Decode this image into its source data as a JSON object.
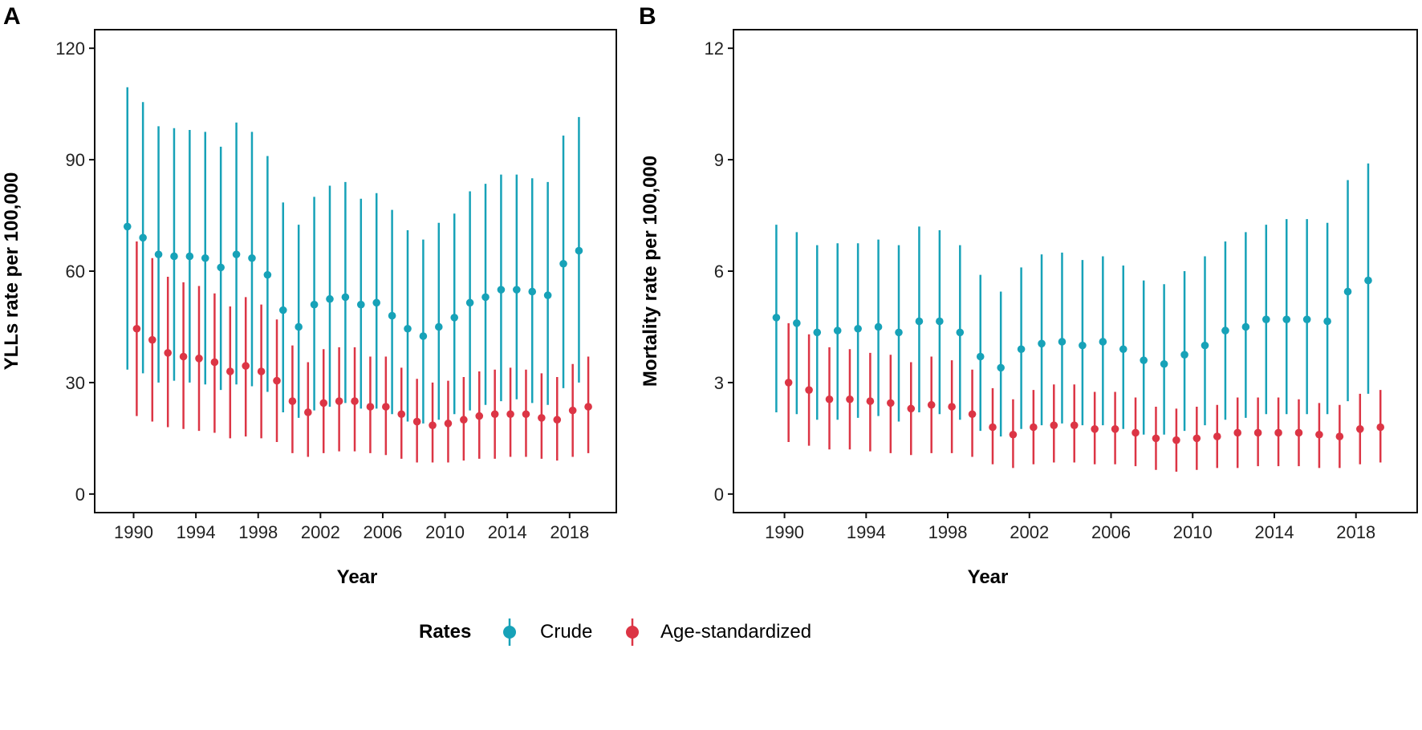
{
  "colors": {
    "crude": "#17a2b8",
    "age_standardized": "#dc3545"
  },
  "legend": {
    "title": "Rates",
    "items": [
      {
        "label": "Crude",
        "color": "#17a2b8"
      },
      {
        "label": "Age-standardized",
        "color": "#dc3545"
      }
    ]
  },
  "chart_data": [
    {
      "type": "scatter",
      "panel_label": "A",
      "xlabel": "Year",
      "ylabel": "YLLs rate per 100,000",
      "ylim": [
        -5,
        125
      ],
      "xlim": [
        1987.5,
        2021
      ],
      "y_ticks": [
        0,
        30,
        60,
        90,
        120
      ],
      "x_ticks": [
        1990,
        1994,
        1998,
        2002,
        2006,
        2010,
        2014,
        2018
      ],
      "years": [
        1990,
        1991,
        1992,
        1993,
        1994,
        1995,
        1996,
        1997,
        1998,
        1999,
        2000,
        2001,
        2002,
        2003,
        2004,
        2005,
        2006,
        2007,
        2008,
        2009,
        2010,
        2011,
        2012,
        2013,
        2014,
        2015,
        2016,
        2017,
        2018,
        2019
      ],
      "series": [
        {
          "name": "Crude",
          "values": [
            72,
            69,
            64.5,
            64,
            64,
            63.5,
            61,
            64.5,
            63.5,
            59,
            49.5,
            45,
            51,
            52.5,
            53,
            51,
            51.5,
            48,
            44.5,
            42.5,
            45,
            47.5,
            51.5,
            53,
            55,
            55,
            54.5,
            53.5,
            62,
            65.5
          ],
          "lower": [
            33.5,
            32.5,
            30,
            30.5,
            30,
            29.5,
            28,
            29.5,
            29,
            27.5,
            22,
            20.5,
            22.5,
            23.5,
            24.5,
            23,
            23,
            21.5,
            19.5,
            19,
            20,
            21.5,
            22.5,
            24,
            25,
            25.5,
            24.5,
            24,
            28.5,
            30
          ],
          "upper": [
            109.5,
            105.5,
            99,
            98.5,
            98,
            97.5,
            93.5,
            100,
            97.5,
            91,
            78.5,
            72.5,
            80,
            83,
            84,
            79.5,
            81,
            76.5,
            71,
            68.5,
            73,
            75.5,
            81.5,
            83.5,
            86,
            86,
            85,
            84,
            96.5,
            101.5
          ]
        },
        {
          "name": "Age-standardized",
          "values": [
            44.5,
            41.5,
            38,
            37,
            36.5,
            35.5,
            33,
            34.5,
            33,
            30.5,
            25,
            22,
            24.5,
            25,
            25,
            23.5,
            23.5,
            21.5,
            19.5,
            18.5,
            19,
            20,
            21,
            21.5,
            21.5,
            21.5,
            20.5,
            20,
            22.5,
            23.5
          ],
          "lower": [
            21,
            19.5,
            18,
            17.5,
            17,
            16.5,
            15,
            15.5,
            15,
            14,
            11,
            10,
            11,
            11.5,
            11.5,
            11,
            10.5,
            9.5,
            8.5,
            8.5,
            8.5,
            9,
            9.5,
            9.5,
            10,
            10,
            9.5,
            9,
            10,
            11
          ],
          "upper": [
            68,
            63.5,
            58.5,
            57,
            56,
            54,
            50.5,
            53,
            51,
            47,
            40,
            35.5,
            39,
            39.5,
            39.5,
            37,
            37,
            34,
            31,
            30,
            30.5,
            31.5,
            33,
            33.5,
            34,
            33.5,
            32.5,
            31.5,
            35,
            37
          ]
        }
      ]
    },
    {
      "type": "scatter",
      "panel_label": "B",
      "xlabel": "Year",
      "ylabel": "Mortality rate per 100,000",
      "ylim": [
        -0.5,
        12.5
      ],
      "xlim": [
        1987.5,
        2021
      ],
      "y_ticks": [
        0,
        3,
        6,
        9,
        12
      ],
      "x_ticks": [
        1990,
        1994,
        1998,
        2002,
        2006,
        2010,
        2014,
        2018
      ],
      "years": [
        1990,
        1991,
        1992,
        1993,
        1994,
        1995,
        1996,
        1997,
        1998,
        1999,
        2000,
        2001,
        2002,
        2003,
        2004,
        2005,
        2006,
        2007,
        2008,
        2009,
        2010,
        2011,
        2012,
        2013,
        2014,
        2015,
        2016,
        2017,
        2018,
        2019
      ],
      "series": [
        {
          "name": "Crude",
          "values": [
            4.75,
            4.6,
            4.35,
            4.4,
            4.45,
            4.5,
            4.35,
            4.65,
            4.65,
            4.35,
            3.7,
            3.4,
            3.9,
            4.05,
            4.1,
            4.0,
            4.1,
            3.9,
            3.6,
            3.5,
            3.75,
            4.0,
            4.4,
            4.5,
            4.7,
            4.7,
            4.7,
            4.65,
            5.45,
            5.75
          ],
          "lower": [
            2.2,
            2.15,
            2.0,
            2.0,
            2.05,
            2.1,
            1.95,
            2.2,
            2.15,
            2.0,
            1.7,
            1.55,
            1.75,
            1.85,
            1.9,
            1.85,
            1.85,
            1.75,
            1.6,
            1.6,
            1.7,
            1.85,
            2.0,
            2.05,
            2.15,
            2.15,
            2.15,
            2.15,
            2.5,
            2.7
          ],
          "upper": [
            7.25,
            7.05,
            6.7,
            6.75,
            6.75,
            6.85,
            6.7,
            7.2,
            7.1,
            6.7,
            5.9,
            5.45,
            6.1,
            6.45,
            6.5,
            6.3,
            6.4,
            6.15,
            5.75,
            5.65,
            6.0,
            6.4,
            6.8,
            7.05,
            7.25,
            7.4,
            7.4,
            7.3,
            8.45,
            8.9
          ]
        },
        {
          "name": "Age-standardized",
          "values": [
            3.0,
            2.8,
            2.55,
            2.55,
            2.5,
            2.45,
            2.3,
            2.4,
            2.35,
            2.15,
            1.8,
            1.6,
            1.8,
            1.85,
            1.85,
            1.75,
            1.75,
            1.65,
            1.5,
            1.45,
            1.5,
            1.55,
            1.65,
            1.65,
            1.65,
            1.65,
            1.6,
            1.55,
            1.75,
            1.8
          ],
          "lower": [
            1.4,
            1.3,
            1.2,
            1.2,
            1.15,
            1.1,
            1.05,
            1.1,
            1.1,
            1.0,
            0.8,
            0.7,
            0.8,
            0.85,
            0.85,
            0.8,
            0.8,
            0.75,
            0.65,
            0.6,
            0.65,
            0.7,
            0.7,
            0.75,
            0.75,
            0.75,
            0.7,
            0.7,
            0.8,
            0.85
          ],
          "upper": [
            4.6,
            4.3,
            3.95,
            3.9,
            3.8,
            3.75,
            3.55,
            3.7,
            3.6,
            3.35,
            2.85,
            2.55,
            2.8,
            2.95,
            2.95,
            2.75,
            2.75,
            2.6,
            2.35,
            2.3,
            2.35,
            2.4,
            2.6,
            2.6,
            2.6,
            2.55,
            2.45,
            2.4,
            2.7,
            2.8
          ]
        }
      ]
    }
  ]
}
